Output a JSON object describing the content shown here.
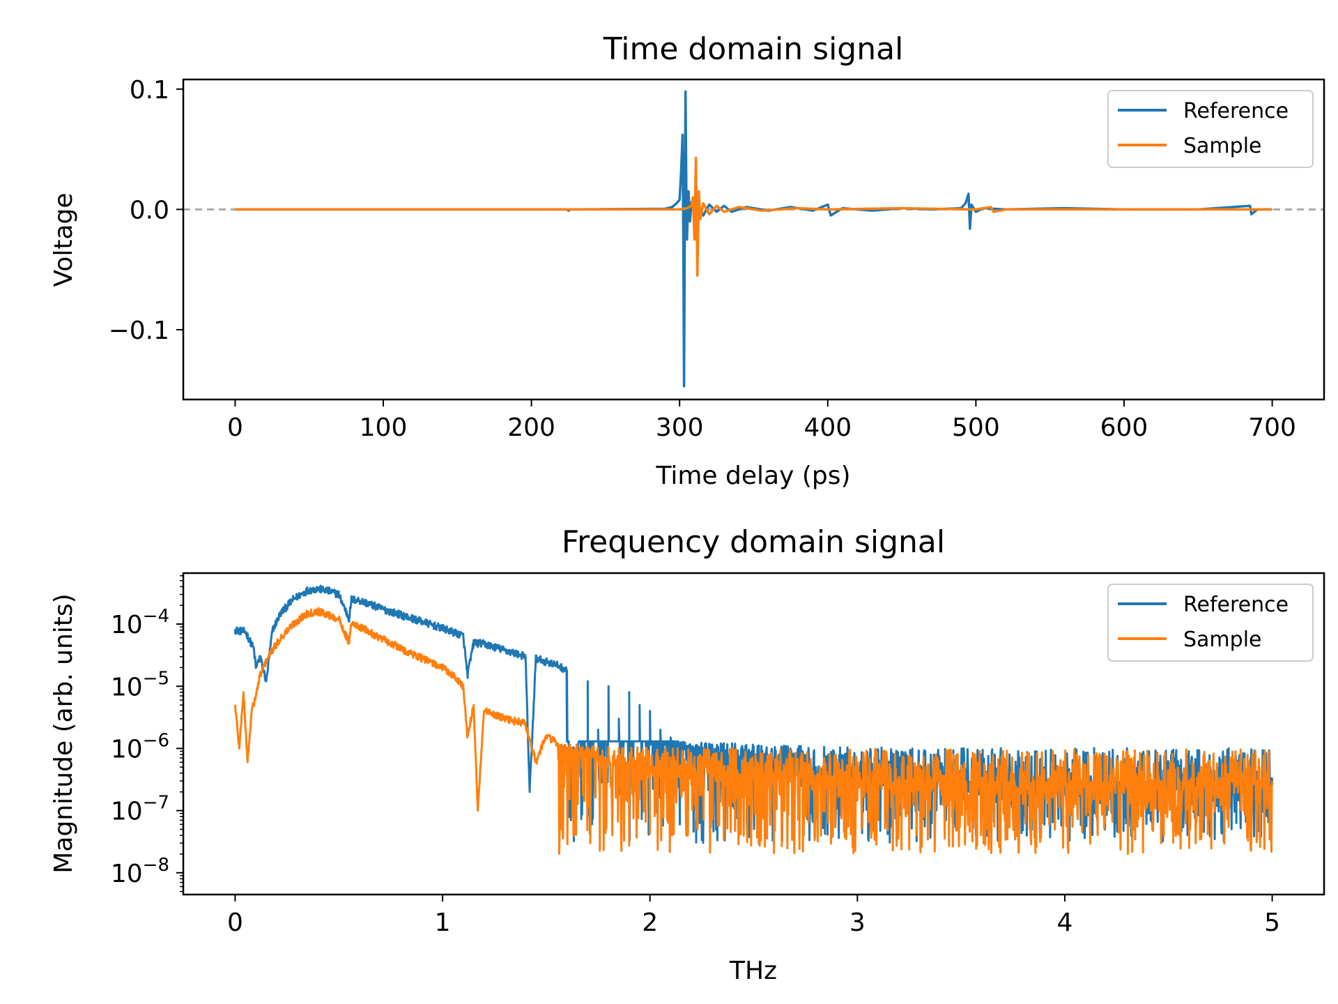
{
  "chart_data": [
    {
      "type": "line",
      "title": "Time domain signal",
      "xlabel": "Time delay (ps)",
      "ylabel": "Voltage",
      "xlim": [
        -35,
        735
      ],
      "ylim": [
        -0.158,
        0.108
      ],
      "xticks": [
        0,
        100,
        200,
        300,
        400,
        500,
        600,
        700
      ],
      "yticks": [
        -0.1,
        0.0,
        0.1
      ],
      "ytick_labels": [
        "−0.1",
        "0.0",
        "0.1"
      ],
      "yscale": "linear",
      "grid": false,
      "legend": "top-right",
      "reference_line": {
        "y": 0.0,
        "style": "dashed",
        "color": "#aaaaaa"
      },
      "series": [
        {
          "name": "Reference",
          "color": "#1f77b4",
          "points": [
            [
              0,
              0
            ],
            [
              224,
              0
            ],
            [
              225,
              -0.001
            ],
            [
              226,
              0
            ],
            [
              290,
              0.0005
            ],
            [
              295,
              0.002
            ],
            [
              298,
              0.005
            ],
            [
              300,
              0.008
            ],
            [
              301,
              0.03
            ],
            [
              302,
              0.062
            ],
            [
              302.5,
              -0.02
            ],
            [
              303,
              -0.147
            ],
            [
              303.5,
              -0.02
            ],
            [
              304,
              0.098
            ],
            [
              304.5,
              0.02
            ],
            [
              305,
              -0.025
            ],
            [
              306,
              0.015
            ],
            [
              307,
              -0.01
            ],
            [
              308,
              0.006
            ],
            [
              310,
              -0.004
            ],
            [
              313,
              0.003
            ],
            [
              316,
              -0.005
            ],
            [
              320,
              0.004
            ],
            [
              325,
              -0.002
            ],
            [
              330,
              0.003
            ],
            [
              335,
              -0.002
            ],
            [
              345,
              0.002
            ],
            [
              360,
              -0.001
            ],
            [
              375,
              0.002
            ],
            [
              390,
              -0.001
            ],
            [
              400,
              0.004
            ],
            [
              402,
              -0.005
            ],
            [
              410,
              0.001
            ],
            [
              430,
              -0.001
            ],
            [
              450,
              0.001
            ],
            [
              470,
              0
            ],
            [
              490,
              0.001
            ],
            [
              493,
              0.005
            ],
            [
              495,
              0.013
            ],
            [
              496,
              -0.016
            ],
            [
              497,
              0.004
            ],
            [
              500,
              -0.002
            ],
            [
              505,
              0.001
            ],
            [
              520,
              0
            ],
            [
              560,
              0.001
            ],
            [
              600,
              0
            ],
            [
              650,
              0
            ],
            [
              685,
              0.003
            ],
            [
              686,
              -0.004
            ],
            [
              690,
              0
            ],
            [
              700,
              0
            ]
          ]
        },
        {
          "name": "Sample",
          "color": "#ff7f0e",
          "points": [
            [
              0,
              0
            ],
            [
              100,
              0
            ],
            [
              200,
              0
            ],
            [
              300,
              0
            ],
            [
              305,
              0.001
            ],
            [
              308,
              0.003
            ],
            [
              309,
              0.01
            ],
            [
              310,
              -0.025
            ],
            [
              311,
              0.043
            ],
            [
              312,
              -0.055
            ],
            [
              313,
              0.015
            ],
            [
              314,
              -0.008
            ],
            [
              316,
              0.005
            ],
            [
              320,
              -0.004
            ],
            [
              325,
              0.003
            ],
            [
              330,
              -0.002
            ],
            [
              340,
              0.002
            ],
            [
              355,
              -0.001
            ],
            [
              380,
              0.001
            ],
            [
              400,
              0
            ],
            [
              450,
              0.001
            ],
            [
              500,
              0
            ],
            [
              510,
              0.002
            ],
            [
              512,
              -0.002
            ],
            [
              520,
              0
            ],
            [
              600,
              0
            ],
            [
              650,
              0
            ],
            [
              700,
              0
            ]
          ]
        }
      ]
    },
    {
      "type": "line",
      "title": "Frequency domain signal",
      "xlabel": "THz",
      "ylabel": "Magnitude (arb. units)",
      "xlim": [
        -0.25,
        5.25
      ],
      "ylim_log10": [
        -8.35,
        -3.18
      ],
      "yscale": "log",
      "xticks": [
        0,
        1,
        2,
        3,
        4,
        5
      ],
      "yticks_exp": [
        -8,
        -7,
        -6,
        -5,
        -4
      ],
      "ytick_base": "10",
      "grid": false,
      "legend": "top-right",
      "series": [
        {
          "name": "Reference",
          "color": "#1f77b4",
          "points": [
            [
              0.0,
              8e-05
            ],
            [
              0.05,
              7.5e-05
            ],
            [
              0.09,
              4e-05
            ],
            [
              0.1,
              2e-05
            ],
            [
              0.12,
              3e-05
            ],
            [
              0.15,
              1.2e-05
            ],
            [
              0.18,
              8e-05
            ],
            [
              0.22,
              0.00015
            ],
            [
              0.28,
              0.00025
            ],
            [
              0.35,
              0.00035
            ],
            [
              0.4,
              0.00037
            ],
            [
              0.45,
              0.00034
            ],
            [
              0.5,
              0.0003
            ],
            [
              0.55,
              0.00012
            ],
            [
              0.56,
              0.00025
            ],
            [
              0.6,
              0.00024
            ],
            [
              0.7,
              0.00018
            ],
            [
              0.8,
              0.00014
            ],
            [
              0.9,
              0.00011
            ],
            [
              1.0,
              8.5e-05
            ],
            [
              1.1,
              6.5e-05
            ],
            [
              1.12,
              1.5e-05
            ],
            [
              1.15,
              5e-05
            ],
            [
              1.2,
              4.8e-05
            ],
            [
              1.3,
              3.8e-05
            ],
            [
              1.4,
              3e-05
            ],
            [
              1.42,
              2e-07
            ],
            [
              1.45,
              2.8e-05
            ],
            [
              1.55,
              2.2e-05
            ],
            [
              1.6,
              1.8e-05
            ],
            [
              1.62,
              2e-07
            ],
            [
              1.7,
              1.2e-05
            ],
            [
              1.75,
              2e-06
            ],
            [
              1.8,
              1e-05
            ],
            [
              1.85,
              3e-06
            ],
            [
              1.9,
              8e-06
            ],
            [
              1.95,
              5e-06
            ],
            [
              2.0,
              4e-06
            ],
            [
              2.05,
              2e-06
            ],
            [
              2.1,
              1.5e-06
            ],
            [
              2.2,
              1e-06
            ],
            [
              2.4,
              8e-07
            ],
            [
              2.6,
              6e-07
            ],
            [
              2.8,
              5e-07
            ],
            [
              3.0,
              4e-07
            ],
            [
              3.5,
              3e-07
            ],
            [
              4.0,
              3e-07
            ],
            [
              4.5,
              3e-07
            ],
            [
              5.0,
              3e-07
            ]
          ],
          "noise_band": {
            "from_thz": 1.6,
            "to_thz": 5.0,
            "magnitude_range": [
              3e-08,
              1.3e-06
            ]
          }
        },
        {
          "name": "Sample",
          "color": "#ff7f0e",
          "points": [
            [
              0.0,
              5e-06
            ],
            [
              0.02,
              1e-06
            ],
            [
              0.04,
              8e-06
            ],
            [
              0.06,
              6e-07
            ],
            [
              0.08,
              4e-06
            ],
            [
              0.1,
              7e-06
            ],
            [
              0.12,
              1.5e-05
            ],
            [
              0.16,
              3e-05
            ],
            [
              0.22,
              6e-05
            ],
            [
              0.28,
              0.0001
            ],
            [
              0.35,
              0.00015
            ],
            [
              0.4,
              0.00016
            ],
            [
              0.45,
              0.00014
            ],
            [
              0.5,
              0.00012
            ],
            [
              0.55,
              5e-05
            ],
            [
              0.56,
              0.0001
            ],
            [
              0.6,
              9e-05
            ],
            [
              0.7,
              6e-05
            ],
            [
              0.8,
              4e-05
            ],
            [
              0.9,
              2.8e-05
            ],
            [
              1.0,
              2e-05
            ],
            [
              1.05,
              1.5e-05
            ],
            [
              1.1,
              1e-05
            ],
            [
              1.12,
              1.5e-06
            ],
            [
              1.15,
              5e-06
            ],
            [
              1.17,
              1e-07
            ],
            [
              1.2,
              4e-06
            ],
            [
              1.3,
              3e-06
            ],
            [
              1.4,
              2.5e-06
            ],
            [
              1.45,
              6e-07
            ],
            [
              1.5,
              1.6e-06
            ],
            [
              1.6,
              1e-06
            ],
            [
              1.8,
              7e-07
            ],
            [
              2.0,
              5e-07
            ],
            [
              2.5,
              4e-07
            ],
            [
              3.0,
              3.5e-07
            ],
            [
              3.5,
              3e-07
            ],
            [
              4.0,
              3e-07
            ],
            [
              4.5,
              3e-07
            ],
            [
              5.0,
              3e-07
            ]
          ],
          "noise_band": {
            "from_thz": 1.55,
            "to_thz": 5.0,
            "magnitude_range": [
              2e-08,
              1.2e-06
            ]
          }
        }
      ]
    }
  ]
}
